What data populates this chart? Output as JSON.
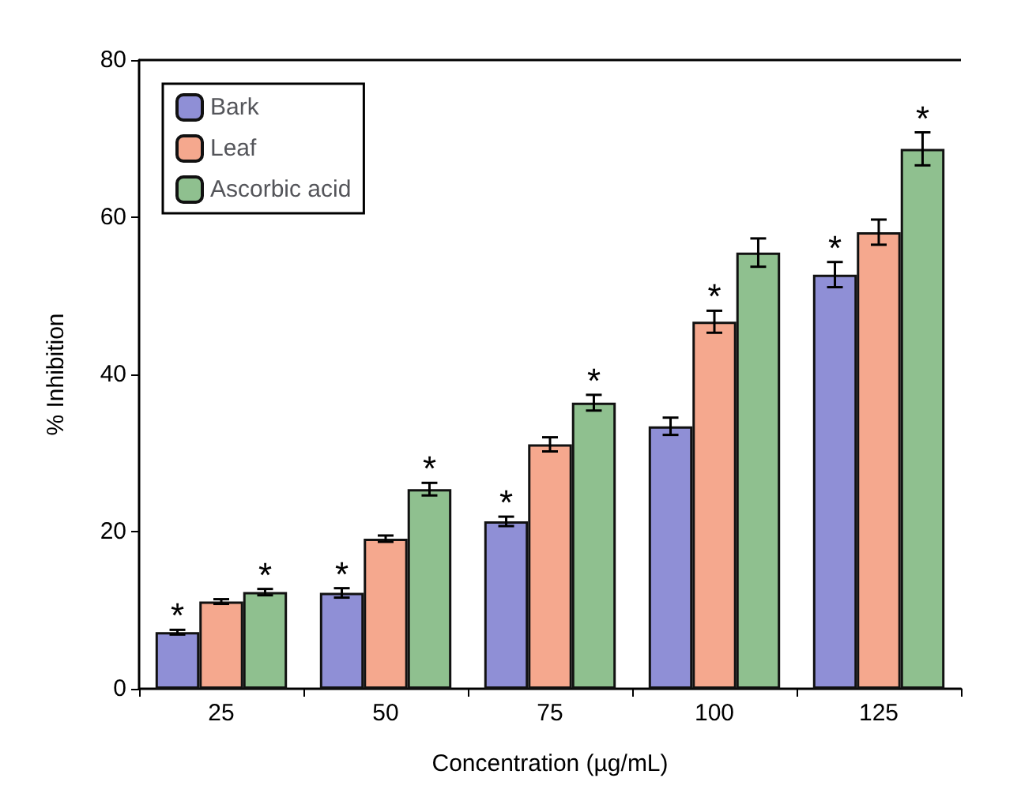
{
  "chart_data": {
    "type": "bar",
    "xlabel": "Concentration (µg/mL)",
    "ylabel": "% Inhibition",
    "categories": [
      "25",
      "50",
      "75",
      "100",
      "125"
    ],
    "series": [
      {
        "name": "Bark",
        "color": "#8f8fd6",
        "values": [
          7.2,
          12.2,
          21.3,
          33.4,
          52.7
        ],
        "value_labels": [
          "*",
          "*",
          "*",
          null,
          "*"
        ],
        "errors": [
          0.3,
          0.6,
          0.6,
          1.1,
          1.6
        ]
      },
      {
        "name": "Leaf",
        "color": "#f5a88e",
        "values": [
          11.1,
          19.1,
          31.1,
          46.7,
          58.1
        ],
        "value_labels": [
          null,
          null,
          null,
          "*",
          null
        ],
        "errors": [
          0.3,
          0.4,
          0.9,
          1.4,
          1.6
        ]
      },
      {
        "name": "Ascorbic acid",
        "color": "#8fc08f",
        "values": [
          12.3,
          25.4,
          36.4,
          55.5,
          68.7
        ],
        "value_labels": [
          "*",
          "*",
          "*",
          null,
          "*"
        ],
        "errors": [
          0.4,
          0.8,
          1.0,
          1.8,
          2.1
        ]
      }
    ],
    "ylim": [
      0,
      80
    ],
    "yticks": [
      0,
      20,
      40,
      60,
      80
    ],
    "grid": false,
    "legend": "top left"
  }
}
